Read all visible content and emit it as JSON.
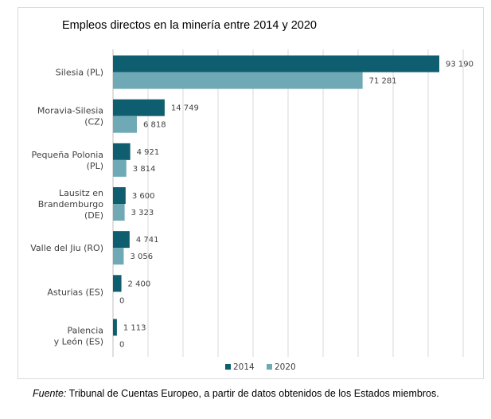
{
  "title": "Empleos directos en la minería entre 2014 y 2020",
  "source": {
    "label": "Fuente:",
    "text": " Tribunal de Cuentas Europeo, a partir de datos obtenidos de los Estados miembros."
  },
  "colors": {
    "series_2014": "#0e5e6f",
    "series_2020": "#6fa9b6",
    "grid": "#d9d9d9"
  },
  "chart_data": {
    "type": "bar",
    "orientation": "horizontal",
    "categories": [
      [
        "Silesia (PL)"
      ],
      [
        "Moravia-Silesia",
        "(CZ)"
      ],
      [
        "Pequeña Polonia",
        "(PL)"
      ],
      [
        "Lausitz en",
        "Brandemburgo",
        "(DE)"
      ],
      [
        "Valle del Jiu (RO)"
      ],
      [
        "Asturias (ES)"
      ],
      [
        "Palencia",
        "y León (ES)"
      ]
    ],
    "series": [
      {
        "name": "2014",
        "values": [
          93190,
          14749,
          4921,
          3600,
          4741,
          2400,
          1113
        ],
        "labels": [
          "93 190",
          "14 749",
          "4 921",
          "3 600",
          "4 741",
          "2 400",
          "1 113"
        ]
      },
      {
        "name": "2020",
        "values": [
          71281,
          6818,
          3814,
          3323,
          3056,
          0,
          0
        ],
        "labels": [
          "71 281",
          "6 818",
          "3 814",
          "3 323",
          "3 056",
          "0",
          "0"
        ]
      }
    ],
    "xlim": [
      0,
      100000
    ],
    "grid": true,
    "legend": "bottom"
  }
}
